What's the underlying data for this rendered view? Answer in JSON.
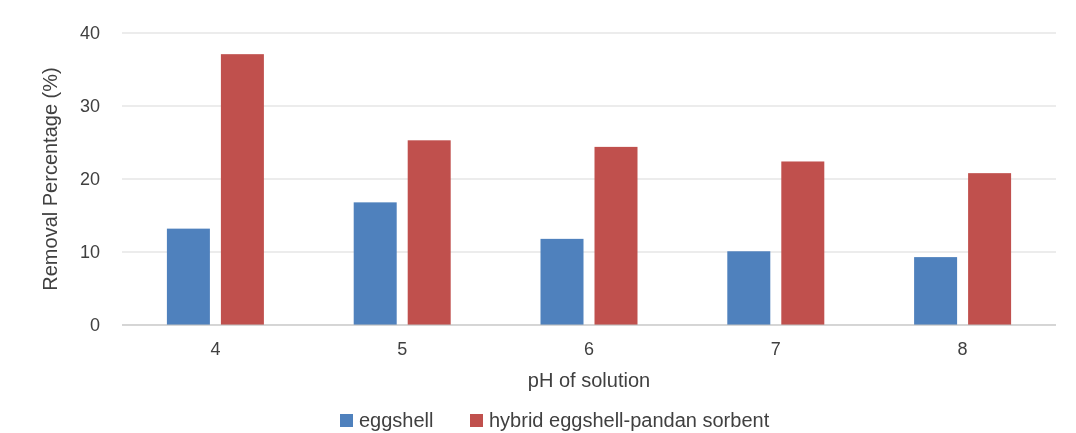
{
  "chart_data": {
    "type": "bar",
    "xlabel": "pH of solution",
    "ylabel": "Removal Percentage (%)",
    "categories": [
      "4",
      "5",
      "6",
      "7",
      "8"
    ],
    "series": [
      {
        "name": "eggshell",
        "color": "#4f81bd",
        "values": [
          13.2,
          16.8,
          11.8,
          10.1,
          9.3
        ]
      },
      {
        "name": "hybrid eggshell-pandan sorbent",
        "color": "#c0504d",
        "values": [
          37.1,
          25.3,
          24.4,
          22.4,
          20.8
        ]
      }
    ],
    "ylim": [
      0,
      40
    ],
    "yticks": [
      0,
      10,
      20,
      30,
      40
    ],
    "grid": "y",
    "legend": "bottom"
  }
}
